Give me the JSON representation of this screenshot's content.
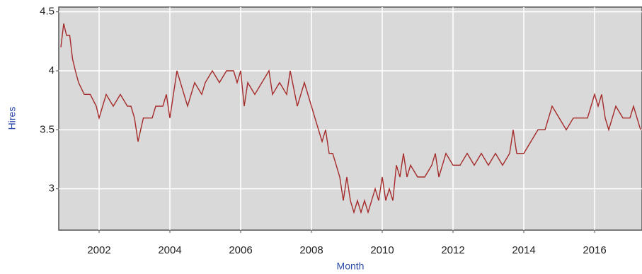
{
  "chart_data": {
    "type": "line",
    "xlabel": "Month",
    "ylabel": "Hires",
    "series": [
      {
        "name": "Hires",
        "color": "#a52a2a",
        "x": [
          2000.92,
          2001.0,
          2001.08,
          2001.17,
          2001.25,
          2001.33,
          2001.42,
          2001.58,
          2001.75,
          2001.92,
          2002.0,
          2002.2,
          2002.4,
          2002.6,
          2002.8,
          2002.9,
          2003.0,
          2003.1,
          2003.25,
          2003.5,
          2003.6,
          2003.8,
          2003.9,
          2004.0,
          2004.1,
          2004.2,
          2004.3,
          2004.5,
          2004.7,
          2004.9,
          2005.0,
          2005.2,
          2005.4,
          2005.6,
          2005.8,
          2005.9,
          2006.0,
          2006.1,
          2006.2,
          2006.4,
          2006.6,
          2006.8,
          2006.9,
          2007.1,
          2007.3,
          2007.4,
          2007.6,
          2007.8,
          2008.0,
          2008.1,
          2008.2,
          2008.3,
          2008.4,
          2008.5,
          2008.6,
          2008.7,
          2008.8,
          2008.9,
          2009.0,
          2009.1,
          2009.2,
          2009.3,
          2009.4,
          2009.5,
          2009.6,
          2009.7,
          2009.8,
          2009.9,
          2010.0,
          2010.1,
          2010.2,
          2010.3,
          2010.4,
          2010.5,
          2010.6,
          2010.7,
          2010.8,
          2011.0,
          2011.2,
          2011.4,
          2011.5,
          2011.6,
          2011.8,
          2012.0,
          2012.2,
          2012.4,
          2012.6,
          2012.8,
          2013.0,
          2013.2,
          2013.4,
          2013.6,
          2013.7,
          2013.8,
          2014.0,
          2014.2,
          2014.4,
          2014.6,
          2014.8,
          2015.0,
          2015.2,
          2015.4,
          2015.8,
          2015.9,
          2016.0,
          2016.1,
          2016.2,
          2016.3,
          2016.4,
          2016.6,
          2016.8,
          2017.0,
          2017.1,
          2017.3
        ],
        "values": [
          4.2,
          4.4,
          4.3,
          4.3,
          4.1,
          4.0,
          3.9,
          3.8,
          3.8,
          3.7,
          3.6,
          3.8,
          3.7,
          3.8,
          3.7,
          3.7,
          3.6,
          3.4,
          3.6,
          3.6,
          3.7,
          3.7,
          3.8,
          3.6,
          3.8,
          4.0,
          3.9,
          3.7,
          3.9,
          3.8,
          3.9,
          4.0,
          3.9,
          4.0,
          4.0,
          3.9,
          4.0,
          3.7,
          3.9,
          3.8,
          3.9,
          4.0,
          3.8,
          3.9,
          3.8,
          4.0,
          3.7,
          3.9,
          3.7,
          3.6,
          3.5,
          3.4,
          3.5,
          3.3,
          3.3,
          3.2,
          3.1,
          2.9,
          3.1,
          2.9,
          2.8,
          2.9,
          2.8,
          2.9,
          2.8,
          2.9,
          3.0,
          2.9,
          3.1,
          2.9,
          3.0,
          2.9,
          3.2,
          3.1,
          3.3,
          3.1,
          3.2,
          3.1,
          3.1,
          3.2,
          3.3,
          3.1,
          3.3,
          3.2,
          3.2,
          3.3,
          3.2,
          3.3,
          3.2,
          3.3,
          3.2,
          3.3,
          3.5,
          3.3,
          3.3,
          3.4,
          3.5,
          3.5,
          3.7,
          3.6,
          3.5,
          3.6,
          3.6,
          3.7,
          3.8,
          3.7,
          3.8,
          3.6,
          3.5,
          3.7,
          3.6,
          3.6,
          3.7,
          3.5
        ]
      }
    ],
    "xlim": [
      2000.86,
      2017.34
    ],
    "xticks": [
      2002,
      2004,
      2006,
      2008,
      2010,
      2012,
      2014,
      2016
    ],
    "ylim": [
      2.65,
      4.54
    ],
    "yticks": [
      3,
      3.5,
      4,
      4.5
    ],
    "grid": true
  }
}
